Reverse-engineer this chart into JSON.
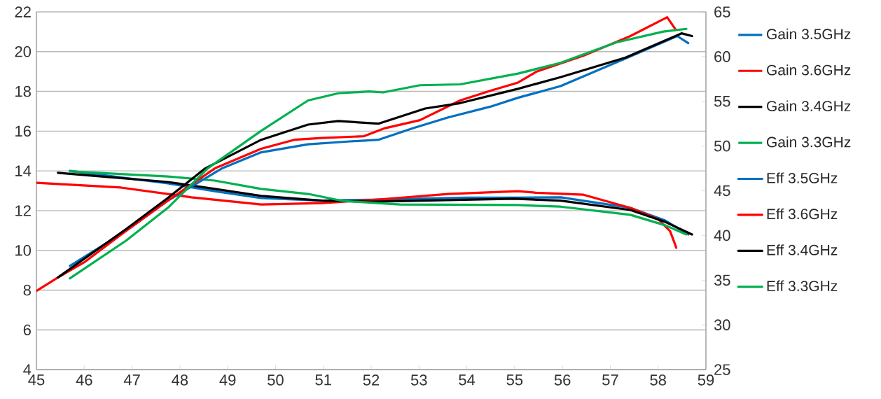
{
  "chart_data": {
    "type": "line",
    "xlim": [
      45,
      59
    ],
    "xticks": [
      45,
      46,
      47,
      48,
      49,
      50,
      51,
      52,
      53,
      54,
      55,
      56,
      57,
      58,
      59
    ],
    "ylim": [
      4,
      22
    ],
    "yticks": [
      4,
      6,
      8,
      10,
      12,
      14,
      16,
      18,
      20,
      22
    ],
    "y2lim": [
      25,
      65
    ],
    "y2ticks": [
      25,
      30,
      35,
      40,
      45,
      50,
      55,
      60,
      65
    ],
    "grid": "y",
    "legend": "right",
    "line_style": "solid",
    "series": [
      {
        "name": "Gain 3.5GHz",
        "color": "#0070c0",
        "x": [
          45.7,
          47.75,
          48.73,
          49.7,
          50.97,
          52,
          53,
          54,
          55,
          55.96,
          57.42,
          58.15,
          58.63
        ],
        "values": [
          14.0,
          13.37,
          12.98,
          12.63,
          12.5,
          12.55,
          12.6,
          12.65,
          12.65,
          12.67,
          12.14,
          11.5,
          10.8
        ]
      },
      {
        "name": "Gain 3.6GHz",
        "color": "#ff0000",
        "x": [
          45,
          46.77,
          48.24,
          49.7,
          50.97,
          52.15,
          53.61,
          55.07,
          55.45,
          56.44,
          57.42,
          58.0,
          58.25,
          58.34,
          58.38
        ],
        "values": [
          13.4,
          13.16,
          12.67,
          12.31,
          12.38,
          12.56,
          12.84,
          12.98,
          12.9,
          12.8,
          12.14,
          11.57,
          10.97,
          10.4,
          10.13
        ]
      },
      {
        "name": "Gain 3.4GHz",
        "color": "#000000",
        "x": [
          45.45,
          47.75,
          48.73,
          49.7,
          50.97,
          52,
          53,
          54,
          55,
          55.96,
          57.42,
          58.15,
          58.71
        ],
        "values": [
          13.9,
          13.44,
          13.09,
          12.74,
          12.5,
          12.45,
          12.5,
          12.55,
          12.6,
          12.5,
          12.03,
          11.43,
          10.8
        ]
      },
      {
        "name": "Gain 3.3GHz",
        "color": "#00b050",
        "x": [
          45.7,
          47.75,
          48.73,
          49.7,
          50.68,
          51.4,
          52.6,
          55.07,
          55.96,
          57.42,
          58.15,
          58.59
        ],
        "values": [
          13.97,
          13.72,
          13.51,
          13.09,
          12.84,
          12.49,
          12.31,
          12.28,
          12.2,
          11.79,
          11.26,
          10.8
        ]
      },
      {
        "name": "Eff 3.5GHz",
        "color": "#0070c0",
        "axis": "y2",
        "x": [
          45.7,
          46.87,
          47.75,
          48.88,
          49.7,
          50.68,
          51.5,
          52.15,
          52.88,
          53.61,
          54.49,
          55.07,
          55.96,
          57.32,
          58.4,
          58.63
        ],
        "values": [
          36.6,
          40.5,
          43.9,
          47.5,
          49.3,
          50.2,
          50.5,
          50.7,
          52.0,
          53.2,
          54.4,
          55.4,
          56.7,
          59.8,
          62.3,
          61.5
        ]
      },
      {
        "name": "Eff 3.6GHz",
        "color": "#ff0000",
        "axis": "y2",
        "x": [
          45,
          45.45,
          46.0,
          46.87,
          47.75,
          48.73,
          49.7,
          50.39,
          50.97,
          51.85,
          52.29,
          53.02,
          53.86,
          54.5,
          55.07,
          55.45,
          56.44,
          57.42,
          58.19,
          58.37
        ],
        "values": [
          33.8,
          35.3,
          37.0,
          40.5,
          43.9,
          47.5,
          49.7,
          50.7,
          50.9,
          51.1,
          52.0,
          52.9,
          55.1,
          56.2,
          57.1,
          58.3,
          60.1,
          62.3,
          64.4,
          63.0
        ]
      },
      {
        "name": "Eff 3.4GHz",
        "color": "#000000",
        "axis": "y2",
        "x": [
          45.45,
          46.87,
          47.75,
          48.53,
          49.7,
          50.68,
          51.31,
          52.15,
          53.13,
          53.86,
          55.07,
          55.96,
          57.32,
          58.49,
          58.71
        ],
        "values": [
          35.3,
          40.7,
          44.2,
          47.5,
          50.7,
          52.4,
          52.8,
          52.5,
          54.2,
          54.8,
          56.4,
          57.7,
          59.9,
          62.6,
          62.3
        ]
      },
      {
        "name": "Eff 3.3GHz",
        "color": "#00b050",
        "axis": "y2",
        "x": [
          45.7,
          46.87,
          47.75,
          48.58,
          49.7,
          50.68,
          51.31,
          51.95,
          52.25,
          53.02,
          53.86,
          55.07,
          55.96,
          57.13,
          58.11,
          58.59
        ],
        "values": [
          35.2,
          39.4,
          43.1,
          47.5,
          51.7,
          55.1,
          55.9,
          56.1,
          56.0,
          56.8,
          56.9,
          58.1,
          59.3,
          61.6,
          62.8,
          63.1
        ]
      }
    ]
  }
}
